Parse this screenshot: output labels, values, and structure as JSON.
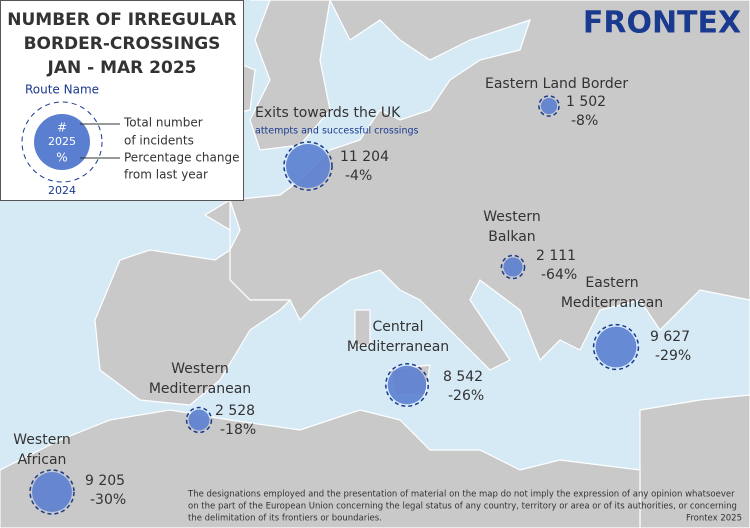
{
  "header": {
    "title": [
      "NUMBER OF IRREGULAR",
      "BORDER-CROSSINGS",
      "JAN - MAR 2025"
    ],
    "logo": "FRONTEX"
  },
  "legend": {
    "route_name": "Route Name",
    "count": "#",
    "year": "2025",
    "change": "%",
    "previous_year": "2024",
    "count_label": [
      "Total number",
      "of incidents"
    ],
    "change_label": [
      "Percentage change",
      "from last year"
    ]
  },
  "routes": [
    {
      "name": [
        "Exits towards the UK"
      ],
      "subtitle": "attempts and successful crossings",
      "count": {
        "value": 11204,
        "label": "11 204"
      },
      "change": "-4%"
    },
    {
      "name": [
        "Eastern Land Border"
      ],
      "count": {
        "value": 1502,
        "label": "1 502"
      },
      "change": "-8%"
    },
    {
      "name": [
        "Western",
        "Balkan"
      ],
      "count": {
        "value": 2111,
        "label": "2 111"
      },
      "change": "-64%"
    },
    {
      "name": [
        "Eastern",
        "Mediterranean"
      ],
      "count": {
        "value": 9627,
        "label": "9 627"
      },
      "change": "-29%"
    },
    {
      "name": [
        "Central",
        "Mediterranean"
      ],
      "count": {
        "value": 8542,
        "label": "8 542"
      },
      "change": "-26%"
    },
    {
      "name": [
        "Western",
        "Mediterranean"
      ],
      "count": {
        "value": 2528,
        "label": "2 528"
      },
      "change": "-18%"
    },
    {
      "name": [
        "Western",
        "African"
      ],
      "count": {
        "value": 9205,
        "label": "9 205"
      },
      "change": "-30%"
    }
  ],
  "footer": {
    "disclaimer": [
      "The designations employed and the presentation of material on the map do not imply the expression of any opinion whatsoever",
      "on the part of the European Union concerning the legal status of any country, territory or area or of its authorities, or concerning",
      "the delimitation of its frontiers or boundaries."
    ],
    "credit": "Frontex 2025"
  }
}
